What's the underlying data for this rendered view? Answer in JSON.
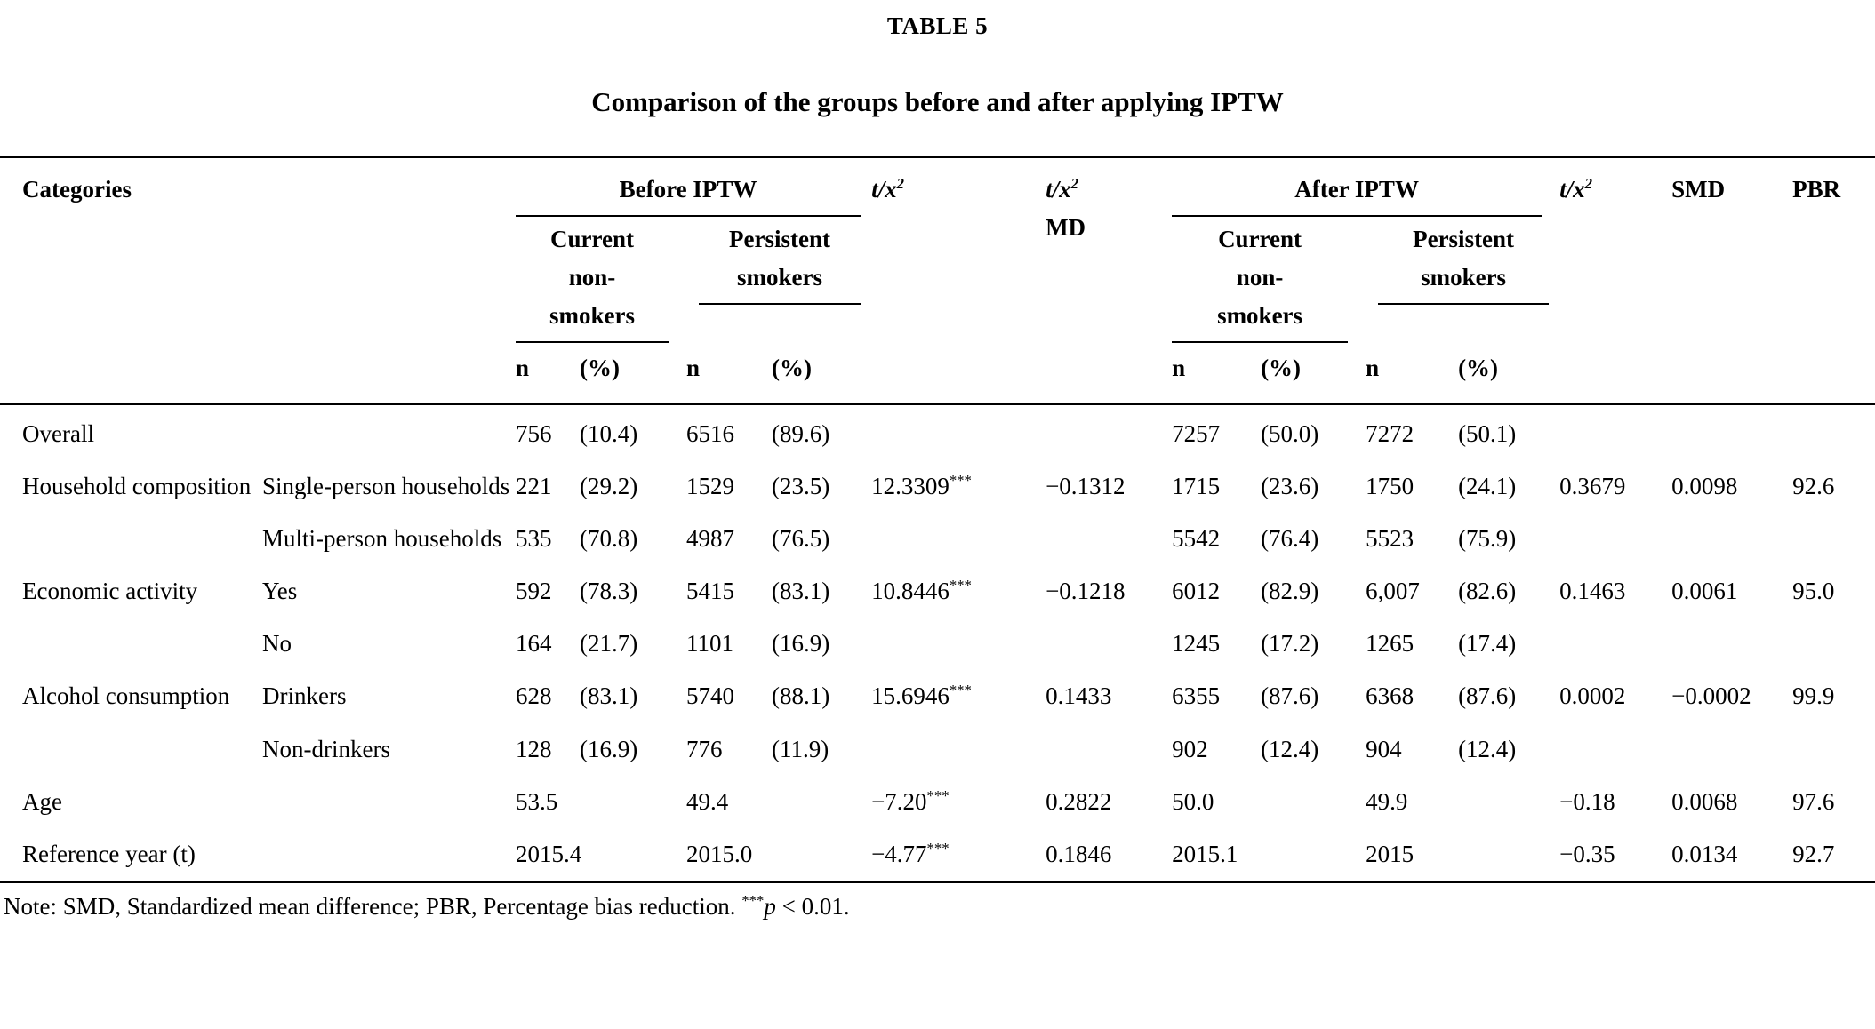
{
  "table": {
    "label": "TABLE 5",
    "title": "Comparison of the groups before and after applying IPTW",
    "header": {
      "categories": "Categories",
      "before_iptw": "Before IPTW",
      "after_iptw": "After IPTW",
      "tx2_base": "t/x",
      "tx2_sup": "2",
      "md": "MD",
      "smd": "SMD",
      "pbr": "PBR",
      "current_nonsmokers": "Current non- smokers",
      "persistent_smokers": "Persistent smokers",
      "n": "n",
      "pct": "(%)"
    },
    "rows": [
      {
        "category": "Overall",
        "cat_rowspan": 1,
        "subcategory": "",
        "cells": [
          "756",
          "(10.4)",
          "6516",
          "(89.6)",
          "",
          "",
          "7257",
          "(50.0)",
          "7272",
          "(50.1)",
          "",
          "",
          ""
        ]
      },
      {
        "category": "Household composition",
        "cat_rowspan": 2,
        "subcategory": "Single-person households",
        "cells": [
          "221",
          "(29.2)",
          "1529",
          "(23.5)",
          "12.3309***",
          "−0.1312",
          "1715",
          "(23.6)",
          "1750",
          "(24.1)",
          "0.3679",
          "0.0098",
          "92.6"
        ]
      },
      {
        "subcategory": "Multi-person households",
        "cells": [
          "535",
          "(70.8)",
          "4987",
          "(76.5)",
          "",
          "",
          "5542",
          "(76.4)",
          "5523",
          "(75.9)",
          "",
          "",
          ""
        ]
      },
      {
        "category": "Economic activity",
        "cat_rowspan": 2,
        "subcategory": "Yes",
        "cells": [
          "592",
          "(78.3)",
          "5415",
          "(83.1)",
          "10.8446***",
          "−0.1218",
          "6012",
          "(82.9)",
          "6,007",
          "(82.6)",
          "0.1463",
          "0.0061",
          "95.0"
        ]
      },
      {
        "subcategory": "No",
        "cells": [
          "164",
          "(21.7)",
          "1101",
          "(16.9)",
          "",
          "",
          "1245",
          "(17.2)",
          "1265",
          "(17.4)",
          "",
          "",
          ""
        ]
      },
      {
        "category": "Alcohol consumption",
        "cat_rowspan": 2,
        "subcategory": "Drinkers",
        "cells": [
          "628",
          "(83.1)",
          "5740",
          "(88.1)",
          "15.6946***",
          "0.1433",
          "6355",
          "(87.6)",
          "6368",
          "(87.6)",
          "0.0002",
          "−0.0002",
          "99.9"
        ]
      },
      {
        "subcategory": "Non-drinkers",
        "cells": [
          "128",
          "(16.9)",
          "776",
          "(11.9)",
          "",
          "",
          "902",
          "(12.4)",
          "904",
          "(12.4)",
          "",
          "",
          ""
        ]
      },
      {
        "category": "Age",
        "cat_rowspan": 1,
        "subcategory": "",
        "cells": [
          "53.5",
          "",
          "49.4",
          "",
          "−7.20***",
          "0.2822",
          "50.0",
          "",
          "49.9",
          "",
          "−0.18",
          "0.0068",
          "97.6"
        ]
      },
      {
        "category": "Reference year (t)",
        "cat_rowspan": 1,
        "subcategory": "",
        "cells": [
          "2015.4",
          "",
          "2015.0",
          "",
          "−4.77***",
          "0.1846",
          "2015.1",
          "",
          "2015",
          "",
          "−0.35",
          "0.0134",
          "92.7"
        ]
      }
    ]
  },
  "note": {
    "prefix": "Note: SMD, Standardized mean difference; PBR, Percentage bias reduction. ",
    "stars": "***",
    "p": "p",
    "rest": " < 0.01."
  }
}
